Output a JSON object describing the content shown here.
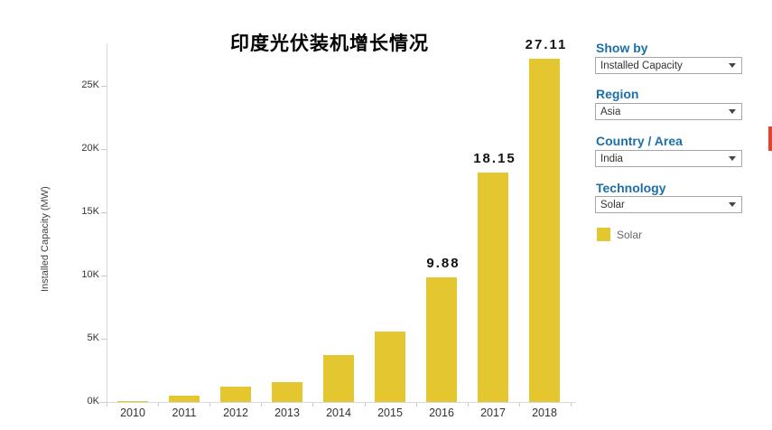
{
  "chart_data": {
    "type": "bar",
    "title": "印度光伏装机增长情况",
    "ylabel": "Installed Capacity (MW)",
    "xlabel": "",
    "units": "thousand MW (K)",
    "categories": [
      "2010",
      "2011",
      "2012",
      "2013",
      "2014",
      "2015",
      "2016",
      "2017",
      "2018"
    ],
    "values": [
      0.06,
      0.5,
      1.2,
      1.6,
      3.7,
      5.6,
      9.88,
      18.15,
      27.11
    ],
    "data_labels": {
      "2016": "9.88",
      "2017": "18.15",
      "2018": "27.11"
    },
    "series_name": "Solar",
    "bar_color": "#e3c630",
    "ylim": [
      0,
      28
    ],
    "ytick_values": [
      0,
      5,
      10,
      15,
      20,
      25
    ],
    "ytick_labels": [
      "0K",
      "5K",
      "10K",
      "15K",
      "20K",
      "25K"
    ],
    "grid": false,
    "legend_position": "right"
  },
  "sidebar": {
    "accent_color": "#1d6fa6",
    "filters": [
      {
        "label": "Show by",
        "value": "Installed Capacity"
      },
      {
        "label": "Region",
        "value": "Asia"
      },
      {
        "label": "Country / Area",
        "value": "India"
      },
      {
        "label": "Technology",
        "value": "Solar"
      }
    ],
    "legend": {
      "swatch_color": "#e3c630",
      "label": "Solar"
    }
  }
}
